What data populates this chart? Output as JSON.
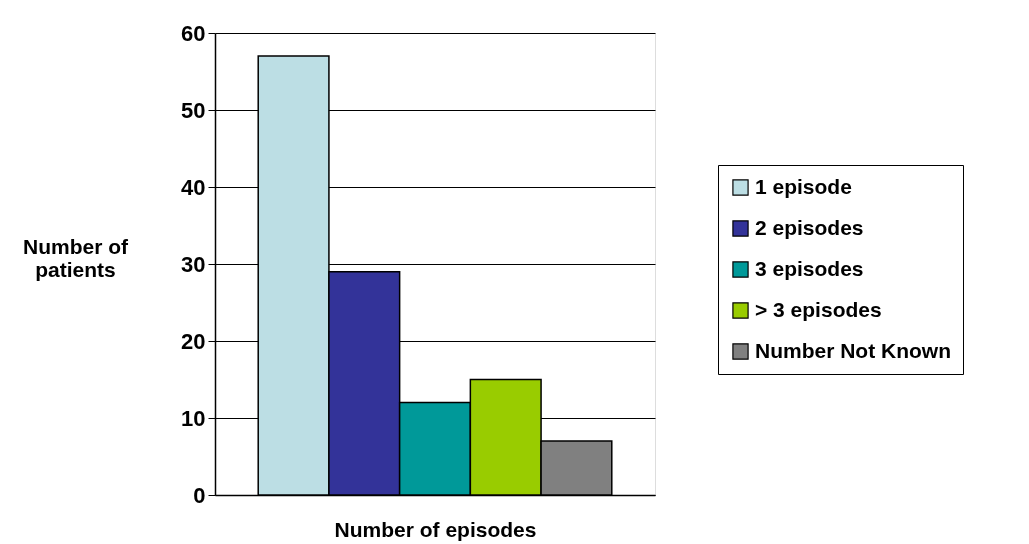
{
  "chart_data": {
    "type": "bar",
    "xlabel": "Number of episodes",
    "ylabel": "Number of patients",
    "categories": [
      null
    ],
    "series": [
      {
        "name": "1 episode",
        "color": "#bcdee4",
        "values": [
          57
        ]
      },
      {
        "name": "2 episodes",
        "color": "#333399",
        "values": [
          29
        ]
      },
      {
        "name": "3 episodes",
        "color": "#009999",
        "values": [
          12
        ]
      },
      {
        "name": "> 3 episodes",
        "color": "#99cc00",
        "values": [
          15
        ]
      },
      {
        "name": "Number Not Known",
        "color": "#808080",
        "values": [
          7
        ]
      }
    ],
    "ylim": [
      0,
      60
    ],
    "yticks": [
      0,
      10,
      20,
      30,
      40,
      50,
      60
    ],
    "grid": "y",
    "legend": "right"
  }
}
